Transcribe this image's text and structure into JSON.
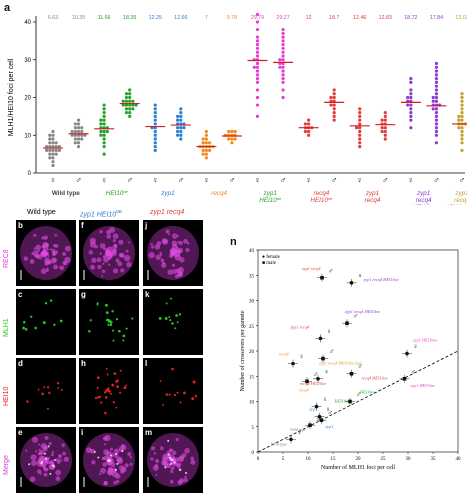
{
  "panel_labels": {
    "a": "a",
    "n": "n",
    "b": "b",
    "c": "c",
    "d": "d",
    "e": "e",
    "f": "f",
    "g": "g",
    "h": "h",
    "i": "i",
    "j": "j",
    "k": "k",
    "l": "l",
    "m": "m"
  },
  "colors": {
    "wt": "#888888",
    "hei": "#2aa02a",
    "zyp": "#2b7fd4",
    "recq": "#f08a1c",
    "zr": "#e23c3c",
    "zh": "#e83ccf",
    "trip": "#8a3cd4",
    "fig": "#c8a030",
    "merge_bg": "#3a1040"
  },
  "chart_data": [
    {
      "type": "scatter",
      "ylabel": "MLH1/HEI10 foci per cell",
      "ylim": [
        0,
        40
      ],
      "yticks": [
        0,
        10,
        20,
        30,
        40
      ],
      "means": [
        "6.63",
        "10.35",
        "11.66",
        "18.35",
        "12.25",
        "12.66",
        "7",
        "9.78",
        "29.79",
        "29.27",
        "12",
        "18.7",
        "12.46",
        "12.83",
        "18.72",
        "17.84",
        "13.03"
      ],
      "sexes": [
        "♀",
        "♂",
        "♀",
        "♂",
        "♀",
        "♂",
        "♀",
        "♂",
        "♀",
        "♂",
        "♀",
        "♂",
        "♀",
        "♂",
        "♀",
        "♂",
        "♂"
      ],
      "genotypes": [
        {
          "line1": "Wild type",
          "line2": "",
          "line3": "",
          "color": "#444444"
        },
        {
          "line1": "HEI10",
          "sup": "oe",
          "line2": "",
          "line3": "",
          "color": "#2aa02a"
        },
        {
          "line1": "zyp1",
          "line2": "",
          "line3": "",
          "color": "#2b7fd4"
        },
        {
          "line1": "recq4",
          "line2": "",
          "line3": "",
          "color": "#f08a1c"
        },
        {
          "line1": "zyp1",
          "line2": "HEI10",
          "sup2": "oe",
          "line3": "",
          "color": "#2aa02a"
        },
        {
          "line1": "recq4",
          "line2": "HEI10",
          "sup2": "oe",
          "line3": "",
          "color": "#e23c3c"
        },
        {
          "line1": "zyp1",
          "line2": "recq4",
          "line3": "",
          "color": "#e23c3c"
        },
        {
          "line1": "zyp1",
          "line2": "recq4",
          "line3": "HEI10",
          "sup3": "oe",
          "color": "#8a3cd4"
        },
        {
          "line1": "zyp1",
          "line2": "recq4",
          "line3": "HEI10",
          "sup3": "oe",
          "extra": "fig1",
          "color": "#c8a030"
        }
      ],
      "series": [
        {
          "mean": 6.6,
          "color": "#888888",
          "values": [
            2,
            3,
            4,
            4,
            5,
            5,
            5,
            6,
            6,
            6,
            6,
            6,
            7,
            7,
            7,
            7,
            7,
            8,
            8,
            8,
            9,
            9,
            10,
            10,
            11
          ]
        },
        {
          "mean": 10.4,
          "color": "#888888",
          "values": [
            7,
            8,
            8,
            9,
            9,
            9,
            10,
            10,
            10,
            10,
            10,
            11,
            11,
            11,
            11,
            12,
            12,
            12,
            13,
            13,
            14
          ]
        },
        {
          "mean": 11.7,
          "color": "#2aa02a",
          "values": [
            5,
            7,
            8,
            9,
            10,
            10,
            11,
            11,
            11,
            12,
            12,
            12,
            13,
            13,
            14,
            14,
            15,
            16,
            17,
            18
          ]
        },
        {
          "mean": 18.4,
          "color": "#2aa02a",
          "values": [
            15,
            16,
            16,
            17,
            17,
            17,
            18,
            18,
            18,
            18,
            18,
            19,
            19,
            19,
            19,
            20,
            20,
            21,
            21,
            22
          ]
        },
        {
          "mean": 12.3,
          "color": "#2b7fd4",
          "values": [
            6,
            7,
            8,
            9,
            10,
            11,
            12,
            12,
            13,
            14,
            15,
            16,
            17,
            18
          ]
        },
        {
          "mean": 12.7,
          "color": "#2b7fd4",
          "values": [
            9,
            10,
            10,
            11,
            11,
            12,
            12,
            12,
            13,
            13,
            13,
            14,
            14,
            15,
            15,
            16,
            17
          ]
        },
        {
          "mean": 7.0,
          "color": "#f08a1c",
          "values": [
            4,
            5,
            5,
            6,
            6,
            6,
            7,
            7,
            7,
            7,
            7,
            8,
            8,
            8,
            9,
            9,
            10,
            11
          ]
        },
        {
          "mean": 9.8,
          "color": "#f08a1c",
          "values": [
            8,
            9,
            9,
            9,
            10,
            10,
            10,
            10,
            11,
            11,
            11
          ]
        },
        {
          "mean": 29.8,
          "color": "#e83ccf",
          "values": [
            15,
            18,
            20,
            22,
            24,
            25,
            26,
            27,
            28,
            28,
            29,
            30,
            30,
            31,
            32,
            33,
            34,
            35,
            36,
            38,
            40,
            42
          ]
        },
        {
          "mean": 29.3,
          "color": "#e83ccf",
          "values": [
            20,
            22,
            24,
            25,
            26,
            27,
            28,
            28,
            29,
            29,
            30,
            30,
            31,
            32,
            33,
            34,
            35,
            36,
            37,
            38
          ]
        },
        {
          "mean": 12.0,
          "color": "#e23c3c",
          "values": [
            10,
            11,
            11,
            12,
            12,
            12,
            13,
            13,
            14
          ]
        },
        {
          "mean": 18.7,
          "color": "#e23c3c",
          "values": [
            14,
            15,
            16,
            17,
            18,
            18,
            19,
            19,
            20,
            20,
            21,
            22
          ]
        },
        {
          "mean": 12.5,
          "color": "#e23c3c",
          "values": [
            7,
            8,
            9,
            10,
            11,
            12,
            12,
            13,
            14,
            15,
            16,
            17
          ]
        },
        {
          "mean": 12.8,
          "color": "#e23c3c",
          "values": [
            9,
            10,
            11,
            11,
            12,
            12,
            13,
            13,
            14,
            14,
            15,
            16
          ]
        },
        {
          "mean": 18.7,
          "color": "#8a3cd4",
          "values": [
            12,
            14,
            15,
            16,
            17,
            18,
            18,
            19,
            19,
            20,
            20,
            21,
            22,
            24,
            25
          ]
        },
        {
          "mean": 17.8,
          "color": "#8a3cd4",
          "values": [
            8,
            10,
            11,
            12,
            13,
            14,
            15,
            16,
            17,
            17,
            18,
            18,
            18,
            19,
            19,
            20,
            20,
            21,
            22,
            23,
            24,
            25,
            26,
            27,
            28,
            29
          ]
        },
        {
          "mean": 13.0,
          "color": "#c8a030",
          "values": [
            6,
            8,
            9,
            10,
            11,
            12,
            12,
            13,
            13,
            13,
            14,
            14,
            15,
            15,
            16,
            17,
            18,
            19,
            20,
            21
          ]
        }
      ]
    },
    {
      "type": "scatter",
      "xlabel": "Number of MLH1 foci per cell",
      "ylabel": "Number of crossovers per gamete",
      "xlim": [
        0,
        40
      ],
      "ylim": [
        0,
        40
      ],
      "xticks": [
        0,
        5,
        10,
        15,
        20,
        25,
        30,
        35,
        40
      ],
      "yticks": [
        0,
        5,
        10,
        15,
        20,
        25,
        30,
        35,
        40
      ],
      "legend": [
        {
          "symbol": "●",
          "name": "female"
        },
        {
          "symbol": "■",
          "name": "male"
        }
      ],
      "regression": {
        "from": [
          0,
          0
        ],
        "to": [
          40,
          20
        ]
      },
      "points": [
        {
          "x": 6.6,
          "y": 2.5,
          "shape": "circle",
          "label": "Wild type",
          "color": "#888888"
        },
        {
          "x": 10.4,
          "y": 5.3,
          "shape": "square",
          "label": "Wild type",
          "color": "#888888"
        },
        {
          "x": 12.3,
          "y": 7.0,
          "shape": "circle",
          "label": "zyp1",
          "color": "#2b7fd4"
        },
        {
          "x": 12.7,
          "y": 6.3,
          "shape": "square",
          "label": "zyp1",
          "color": "#2b7fd4"
        },
        {
          "x": 11.7,
          "y": 9.0,
          "shape": "circle",
          "label": "HEI10oe",
          "color": "#2aa02a"
        },
        {
          "x": 18.4,
          "y": 10.0,
          "shape": "square",
          "label": "HEI10oe",
          "color": "#2aa02a"
        },
        {
          "x": 7.0,
          "y": 17.5,
          "shape": "circle",
          "label": "recq4",
          "color": "#f08a1c"
        },
        {
          "x": 9.8,
          "y": 14.0,
          "shape": "square",
          "label": "recq4",
          "color": "#f08a1c"
        },
        {
          "x": 12.0,
          "y": 14.5,
          "shape": "circle",
          "label": "recq4 HEI10oe",
          "color": "#e23c3c"
        },
        {
          "x": 18.7,
          "y": 15.5,
          "shape": "square",
          "label": "recq4 HEI10oe",
          "color": "#e23c3c"
        },
        {
          "x": 12.5,
          "y": 22.5,
          "shape": "circle",
          "label": "zyp1 recq4",
          "color": "#e23c3c"
        },
        {
          "x": 12.8,
          "y": 34.5,
          "shape": "square",
          "label": "zyp1 recq4",
          "color": "#e23c3c"
        },
        {
          "x": 18.7,
          "y": 33.5,
          "shape": "circle",
          "label": "zyp1 recq4 HEI10oe",
          "color": "#8a3cd4"
        },
        {
          "x": 17.8,
          "y": 25.5,
          "shape": "square",
          "label": "zyp1 recq4 HEI10oe",
          "color": "#8a3cd4"
        },
        {
          "x": 13.0,
          "y": 18.5,
          "shape": "square",
          "label": "zyp1 recq4 HEI10oe fig1",
          "color": "#c8a030"
        },
        {
          "x": 29.8,
          "y": 19.5,
          "shape": "circle",
          "label": "zyp1 HEI10oe",
          "color": "#e83ccf"
        },
        {
          "x": 29.3,
          "y": 14.5,
          "shape": "square",
          "label": "zyp1 HEI10oe",
          "color": "#e83ccf"
        }
      ]
    }
  ],
  "micro": {
    "col_headers": [
      {
        "text": "Wild type",
        "color": "#111111"
      },
      {
        "text": "zyp1 HEI10",
        "sup": "oe",
        "color": "#2b7fd4"
      },
      {
        "text": "zyp1 recq4",
        "color": "#e23c3c"
      }
    ],
    "channels": [
      "REC8",
      "MLH1",
      "HEI10",
      "Merge"
    ],
    "panels": [
      "b",
      "c",
      "d",
      "e",
      "f",
      "g",
      "h",
      "i",
      "j",
      "k",
      "l",
      "m"
    ]
  }
}
